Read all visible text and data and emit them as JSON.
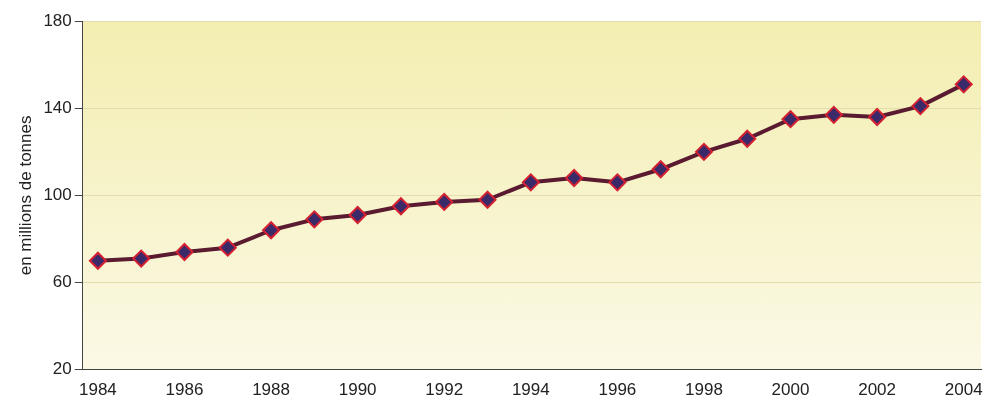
{
  "chart_data": {
    "type": "line",
    "ylabel": "en millions de tonnes",
    "x": [
      1984,
      1985,
      1986,
      1987,
      1988,
      1989,
      1990,
      1991,
      1992,
      1993,
      1994,
      1995,
      1996,
      1997,
      1998,
      1999,
      2000,
      2001,
      2002,
      2003,
      2004
    ],
    "series": [
      {
        "color": "#5a1a30",
        "values": [
          70,
          71,
          74,
          76,
          84,
          89,
          91,
          95,
          97,
          98,
          106,
          108,
          106,
          112,
          120,
          126,
          135,
          137,
          136,
          141,
          151
        ]
      }
    ],
    "xlim": [
      1983.65,
      2004.4
    ],
    "xticks": [
      1984,
      1986,
      1988,
      1990,
      1992,
      1994,
      1996,
      1998,
      2000,
      2002,
      2004
    ],
    "ylim": [
      20,
      180
    ],
    "yticks": [
      20,
      60,
      100,
      140,
      180
    ],
    "grid": "y",
    "marker": "diamond",
    "line_style": "solid",
    "legend": false
  }
}
